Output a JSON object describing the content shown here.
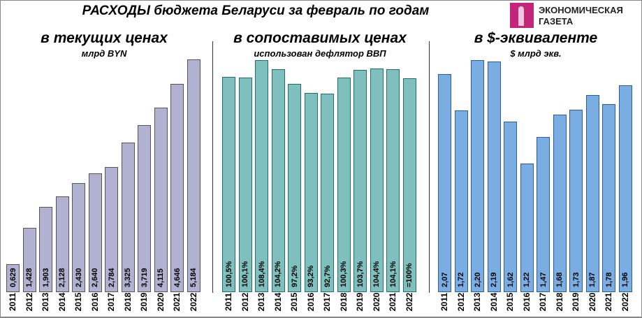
{
  "header": {
    "title": "РАСХОДЫ бюджета Беларуси за февраль по годам",
    "logo_text_1": "ЭКОНОМИЧЕСКАЯ",
    "logo_text_2": "ГАЗЕТА"
  },
  "chart_data": [
    {
      "type": "bar",
      "title": "в текущих ценах",
      "subtitle": "млрд BYN",
      "categories": [
        "2011",
        "2012",
        "2013",
        "2014",
        "2015",
        "2016",
        "2017",
        "2018",
        "2019",
        "2020",
        "2021",
        "2022"
      ],
      "values": [
        0.629,
        1.428,
        1.903,
        2.128,
        2.43,
        2.64,
        2.784,
        3.325,
        3.719,
        4.115,
        4.646,
        5.184
      ],
      "labels": [
        "0,629",
        "1,428",
        "1,903",
        "2,128",
        "2,430",
        "2,640",
        "2,784",
        "3,325",
        "3,719",
        "4,115",
        "4,646",
        "5,184"
      ],
      "color": "#b1b1d1",
      "border": "#555"
    },
    {
      "type": "bar",
      "title": "в сопоставимых ценах",
      "subtitle": "использован дефлятор ВВП",
      "categories": [
        "2011",
        "2012",
        "2013",
        "2014",
        "2015",
        "2016",
        "2017",
        "2018",
        "2019",
        "2020",
        "2021",
        "2022"
      ],
      "values": [
        100.5,
        100.1,
        108.4,
        104.2,
        97.2,
        93.2,
        92.7,
        100.3,
        103.7,
        104.4,
        104.1,
        100
      ],
      "labels": [
        "100,5%",
        "100,1%",
        "108,4%",
        "104,2%",
        "97,2%",
        "93,2%",
        "92,7%",
        "100,3%",
        "103,7%",
        "104,4%",
        "104,1%",
        "=100%"
      ],
      "color": "#7fbfbd",
      "border": "#1f6f6b"
    },
    {
      "type": "bar",
      "title": "в $-эквиваленте",
      "subtitle": "$ млрд экв.",
      "categories": [
        "2011",
        "2012",
        "2013",
        "2014",
        "2015",
        "2016",
        "2017",
        "2018",
        "2019",
        "2020",
        "2021",
        "2022"
      ],
      "values": [
        2.07,
        1.72,
        2.2,
        2.19,
        1.62,
        1.22,
        1.47,
        1.68,
        1.73,
        1.87,
        1.78,
        1.96
      ],
      "labels": [
        "2,07",
        "1,72",
        "2,20",
        "2,19",
        "1,62",
        "1,22",
        "1,47",
        "1,68",
        "1,73",
        "1,87",
        "1,78",
        "1,96"
      ],
      "color": "#7aaee3",
      "border": "#2a5d9a"
    }
  ]
}
